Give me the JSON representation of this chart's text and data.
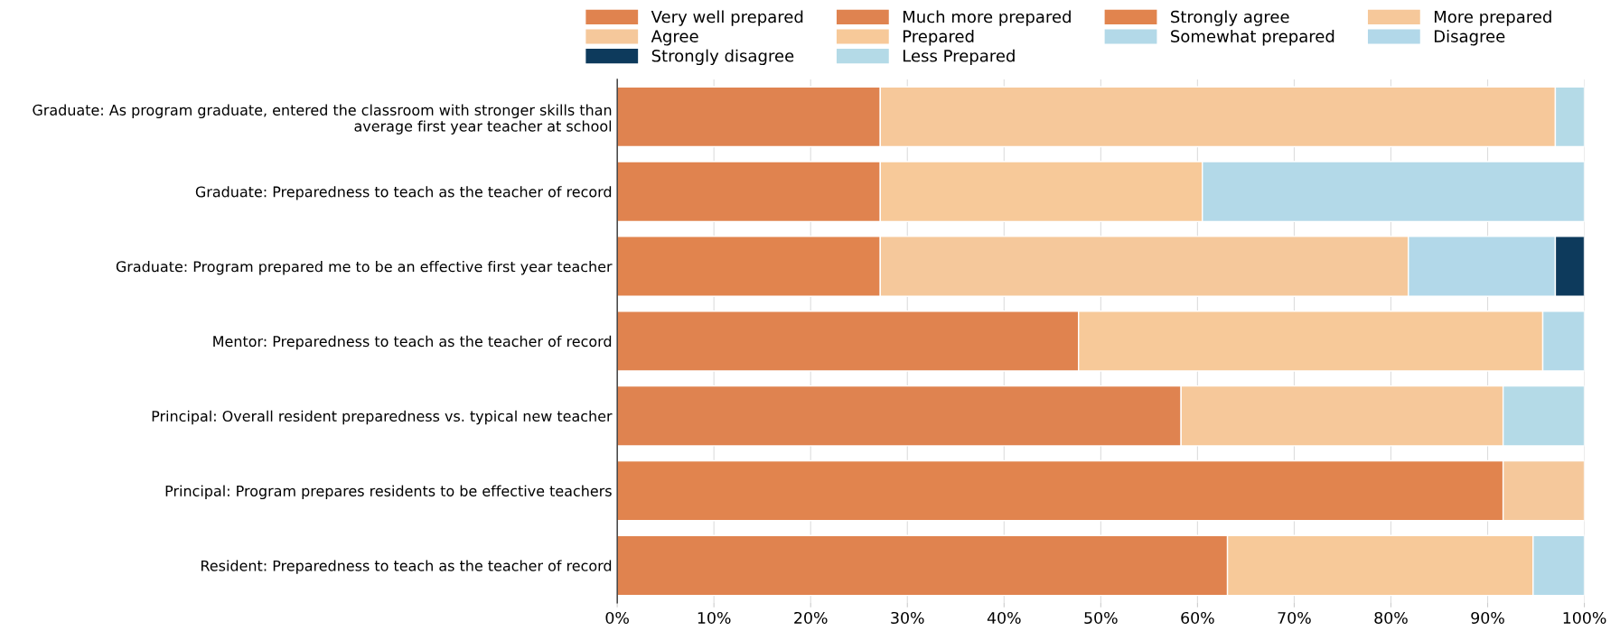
{
  "chart_data": {
    "type": "bar",
    "orientation": "horizontal",
    "stacked": true,
    "categories": [
      "Graduate: As program graduate, entered the classroom with stronger skills than\naverage first year teacher at school",
      "Graduate: Preparedness to teach as the teacher of record",
      "Graduate: Program prepared me to be an effective first year teacher",
      "Mentor: Preparedness to teach as the teacher of record",
      "Principal: Overall resident preparedness vs. typical new teacher",
      "Principal: Program prepares residents to be effective teachers",
      "Resident: Preparedness to teach as the teacher of record"
    ],
    "series": [
      {
        "name": "Very well prepared",
        "color": "#e0834f",
        "values": [
          null,
          27.2,
          null,
          47.7,
          null,
          null,
          63.1
        ]
      },
      {
        "name": "Much more prepared",
        "color": "#df8350",
        "values": [
          27.2,
          null,
          null,
          null,
          58.3,
          null,
          null
        ]
      },
      {
        "name": "Strongly agree",
        "color": "#e1844e",
        "values": [
          null,
          null,
          27.2,
          null,
          null,
          91.6,
          null
        ]
      },
      {
        "name": "More prepared",
        "color": "#f6c89a",
        "values": [
          69.8,
          null,
          null,
          null,
          33.3,
          null,
          null
        ]
      },
      {
        "name": "Agree",
        "color": "#f5c89b",
        "values": [
          null,
          null,
          54.6,
          null,
          null,
          8.4,
          null
        ]
      },
      {
        "name": "Prepared",
        "color": "#f7c999",
        "values": [
          null,
          33.3,
          null,
          48.0,
          null,
          null,
          31.6
        ]
      },
      {
        "name": "Somewhat prepared",
        "color": "#b3d9e8",
        "values": [
          null,
          39.5,
          null,
          4.3,
          null,
          null,
          5.3
        ]
      },
      {
        "name": "Disagree",
        "color": "#b2d8e9",
        "values": [
          null,
          null,
          15.2,
          null,
          null,
          null,
          null
        ]
      },
      {
        "name": "Strongly disagree",
        "color": "#0d3a5c",
        "values": [
          null,
          null,
          3.0,
          null,
          null,
          null,
          null
        ]
      },
      {
        "name": "Less Prepared",
        "color": "#b4dae7",
        "values": [
          3.0,
          null,
          null,
          null,
          8.4,
          null,
          null
        ]
      }
    ],
    "xlim": [
      0,
      100
    ],
    "xticks": [
      {
        "value": 0,
        "label": "0%"
      },
      {
        "value": 10,
        "label": "10%"
      },
      {
        "value": 20,
        "label": "20%"
      },
      {
        "value": 30,
        "label": "30%"
      },
      {
        "value": 40,
        "label": "40%"
      },
      {
        "value": 50,
        "label": "50%"
      },
      {
        "value": 60,
        "label": "60%"
      },
      {
        "value": 70,
        "label": "70%"
      },
      {
        "value": 80,
        "label": "80%"
      },
      {
        "value": 90,
        "label": "90%"
      },
      {
        "value": 100,
        "label": "100%"
      }
    ],
    "grid": "x",
    "legend": "top"
  }
}
